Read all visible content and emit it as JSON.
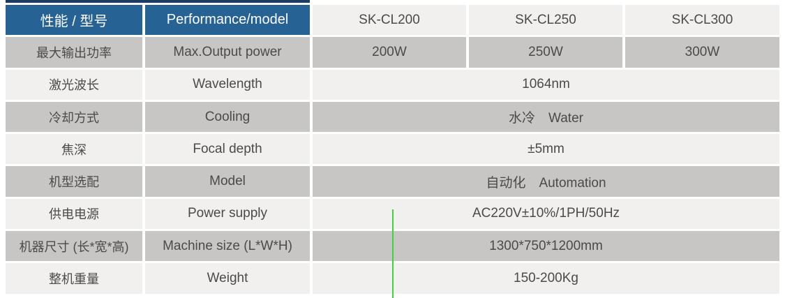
{
  "colors": {
    "header-blue": "#276295",
    "accent-navy": "#1C3C62",
    "row-light": "#F1F0EF",
    "row-gray": "#C7C6C5",
    "text-dark": "#4B4A49",
    "cursor-green": "#3ED43E"
  },
  "table": {
    "header": {
      "performance_cn": "性能 / 型号",
      "performance_en": "Performance/model",
      "models": [
        "SK-CL200",
        "SK-CL250",
        "SK-CL300"
      ]
    },
    "rows": [
      {
        "cn": "最大输出功率",
        "en": "Max.Output power",
        "values": [
          "200W",
          "250W",
          "300W"
        ]
      },
      {
        "cn": "激光波长",
        "en": "Wavelength",
        "value": "1064nm"
      },
      {
        "cn": "冷却方式",
        "en": "Cooling",
        "value": "水冷　Water"
      },
      {
        "cn": "焦深",
        "en": "Focal depth",
        "value": "±5mm"
      },
      {
        "cn": "机型选配",
        "en": "Model",
        "value": "自动化　Automation"
      },
      {
        "cn": "供电电源",
        "en": "Power supply",
        "value": "AC220V±10%/1PH/50Hz"
      },
      {
        "cn": "机器尺寸 (长*宽*高)",
        "en": "Machine size (L*W*H)",
        "value": "1300*750*1200mm"
      },
      {
        "cn": "整机重量",
        "en": "Weight",
        "value": "150-200Kg"
      }
    ]
  }
}
